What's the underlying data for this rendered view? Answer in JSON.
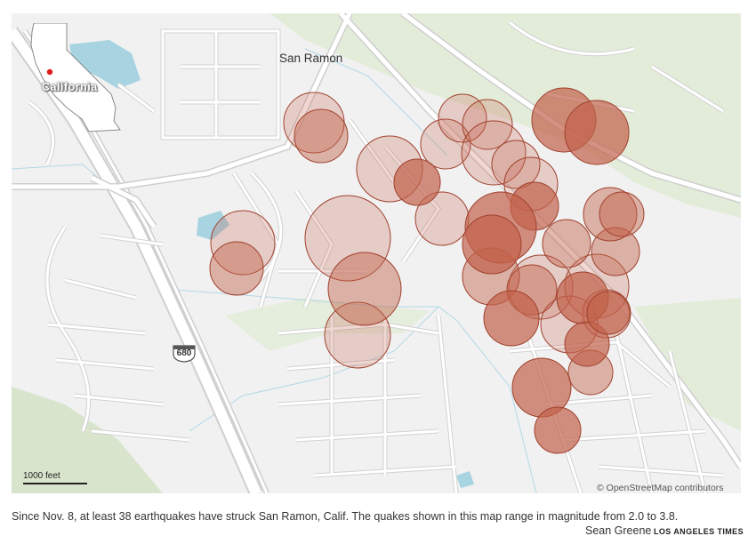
{
  "map": {
    "place_label": "San Ramon",
    "inset_label": "California",
    "highway_label": "680",
    "scale_label": "1000 feet",
    "attribution": "© OpenStreetMap contributors"
  },
  "caption": "Since Nov. 8, at least 38 earthquakes have struck San Ramon, Calif. The quakes shown in this map range in magnitude from 2.0 to 3.8.",
  "credit": "Sean Greene",
  "source": "LOS ANGELES TIMES",
  "colors": {
    "land": "#f2f2f2",
    "park": "#dfe9d6",
    "water": "#a8d3e1",
    "road": "#ffffff",
    "road_casing": "#cccccc",
    "quake_fill": "#c2614a",
    "quake_stroke": "#a0412d"
  },
  "quake_count": 38,
  "magnitude_range": [
    2.0,
    3.8
  ]
}
